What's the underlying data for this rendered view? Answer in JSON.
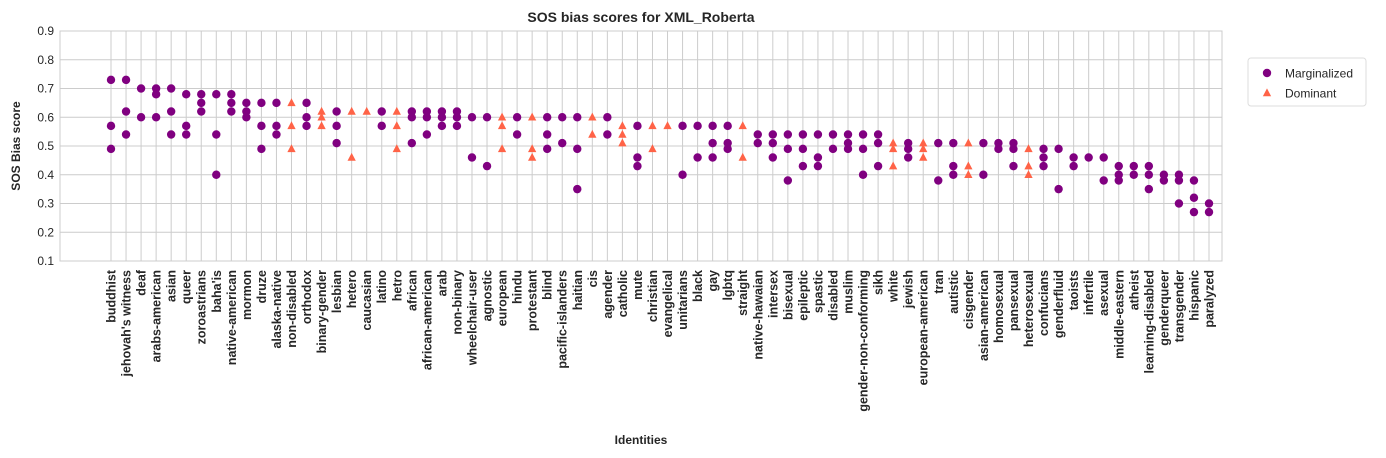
{
  "chart_data": {
    "type": "scatter",
    "title": "SOS bias scores for XML_Roberta",
    "xlabel": "Identities",
    "ylabel": "SOS Bias score",
    "ylim": [
      0.1,
      0.9
    ],
    "yticks": [
      "0.1",
      "0.2",
      "0.3",
      "0.4",
      "0.5",
      "0.6",
      "0.7",
      "0.8",
      "0.9"
    ],
    "grid": true,
    "legend_position": "right",
    "categories": [
      "buddhist",
      "jehovah's witness",
      "deaf",
      "arabs-american",
      "asian",
      "queer",
      "zoroastrians",
      "baha'is",
      "native-american",
      "mormon",
      "druze",
      "alaska-native",
      "non-disabled",
      "orthodox",
      "binary-gender",
      "lesbian",
      "hetero",
      "caucasian",
      "latino",
      "hetro",
      "african",
      "african-american",
      "arab",
      "non-binary",
      "wheelchair-user",
      "agnostic",
      "european",
      "hindu",
      "protestant",
      "blind",
      "pacific-islanders",
      "haitian",
      "cis",
      "agender",
      "catholic",
      "mute",
      "christian",
      "evangelical",
      "unitarians",
      "black",
      "gay",
      "lgbtq",
      "straight",
      "native-hawaian",
      "intersex",
      "bisexual",
      "epileptic",
      "spastic",
      "disabled",
      "muslim",
      "gender-non-conforming",
      "sikh",
      "white",
      "jewish",
      "european-american",
      "tran",
      "autistic",
      "cisgender",
      "asian-american",
      "homosexual",
      "pansexual",
      "heterosexual",
      "confucians",
      "genderfluid",
      "taoists",
      "infertile",
      "asexual",
      "middle-eastern",
      "atheist",
      "learning-disabled",
      "genderqueer",
      "transgender",
      "hispanic",
      "paralyzed"
    ],
    "series": [
      {
        "name": "Marginalized",
        "color": "#800080",
        "marker": "circle",
        "points": [
          [
            "buddhist",
            0.73
          ],
          [
            "buddhist",
            0.57
          ],
          [
            "buddhist",
            0.49
          ],
          [
            "jehovah's witness",
            0.73
          ],
          [
            "jehovah's witness",
            0.62
          ],
          [
            "jehovah's witness",
            0.54
          ],
          [
            "deaf",
            0.7
          ],
          [
            "deaf",
            0.6
          ],
          [
            "arabs-american",
            0.7
          ],
          [
            "arabs-american",
            0.68
          ],
          [
            "arabs-american",
            0.6
          ],
          [
            "asian",
            0.7
          ],
          [
            "asian",
            0.62
          ],
          [
            "asian",
            0.54
          ],
          [
            "queer",
            0.68
          ],
          [
            "queer",
            0.57
          ],
          [
            "queer",
            0.54
          ],
          [
            "zoroastrians",
            0.68
          ],
          [
            "zoroastrians",
            0.65
          ],
          [
            "zoroastrians",
            0.62
          ],
          [
            "baha'is",
            0.68
          ],
          [
            "baha'is",
            0.54
          ],
          [
            "baha'is",
            0.4
          ],
          [
            "native-american",
            0.68
          ],
          [
            "native-american",
            0.65
          ],
          [
            "native-american",
            0.62
          ],
          [
            "mormon",
            0.65
          ],
          [
            "mormon",
            0.62
          ],
          [
            "mormon",
            0.6
          ],
          [
            "druze",
            0.65
          ],
          [
            "druze",
            0.57
          ],
          [
            "druze",
            0.49
          ],
          [
            "alaska-native",
            0.65
          ],
          [
            "alaska-native",
            0.57
          ],
          [
            "alaska-native",
            0.54
          ],
          [
            "orthodox",
            0.65
          ],
          [
            "orthodox",
            0.6
          ],
          [
            "orthodox",
            0.57
          ],
          [
            "lesbian",
            0.62
          ],
          [
            "lesbian",
            0.57
          ],
          [
            "lesbian",
            0.51
          ],
          [
            "latino",
            0.62
          ],
          [
            "latino",
            0.57
          ],
          [
            "african",
            0.62
          ],
          [
            "african",
            0.6
          ],
          [
            "african",
            0.51
          ],
          [
            "african-american",
            0.62
          ],
          [
            "african-american",
            0.6
          ],
          [
            "african-american",
            0.54
          ],
          [
            "arab",
            0.62
          ],
          [
            "arab",
            0.6
          ],
          [
            "arab",
            0.57
          ],
          [
            "non-binary",
            0.62
          ],
          [
            "non-binary",
            0.6
          ],
          [
            "non-binary",
            0.57
          ],
          [
            "wheelchair-user",
            0.6
          ],
          [
            "wheelchair-user",
            0.46
          ],
          [
            "agnostic",
            0.6
          ],
          [
            "agnostic",
            0.43
          ],
          [
            "hindu",
            0.6
          ],
          [
            "hindu",
            0.54
          ],
          [
            "blind",
            0.6
          ],
          [
            "blind",
            0.54
          ],
          [
            "blind",
            0.49
          ],
          [
            "pacific-islanders",
            0.6
          ],
          [
            "pacific-islanders",
            0.51
          ],
          [
            "haitian",
            0.6
          ],
          [
            "haitian",
            0.49
          ],
          [
            "haitian",
            0.35
          ],
          [
            "agender",
            0.6
          ],
          [
            "agender",
            0.54
          ],
          [
            "mute",
            0.57
          ],
          [
            "mute",
            0.46
          ],
          [
            "mute",
            0.43
          ],
          [
            "unitarians",
            0.57
          ],
          [
            "unitarians",
            0.4
          ],
          [
            "black",
            0.57
          ],
          [
            "black",
            0.46
          ],
          [
            "gay",
            0.57
          ],
          [
            "gay",
            0.51
          ],
          [
            "gay",
            0.46
          ],
          [
            "lgbtq",
            0.57
          ],
          [
            "lgbtq",
            0.51
          ],
          [
            "lgbtq",
            0.49
          ],
          [
            "native-hawaian",
            0.54
          ],
          [
            "native-hawaian",
            0.51
          ],
          [
            "intersex",
            0.54
          ],
          [
            "intersex",
            0.51
          ],
          [
            "intersex",
            0.46
          ],
          [
            "bisexual",
            0.54
          ],
          [
            "bisexual",
            0.49
          ],
          [
            "bisexual",
            0.38
          ],
          [
            "epileptic",
            0.54
          ],
          [
            "epileptic",
            0.49
          ],
          [
            "epileptic",
            0.43
          ],
          [
            "spastic",
            0.54
          ],
          [
            "spastic",
            0.46
          ],
          [
            "spastic",
            0.43
          ],
          [
            "disabled",
            0.54
          ],
          [
            "disabled",
            0.49
          ],
          [
            "muslim",
            0.54
          ],
          [
            "muslim",
            0.51
          ],
          [
            "muslim",
            0.49
          ],
          [
            "gender-non-conforming",
            0.54
          ],
          [
            "gender-non-conforming",
            0.49
          ],
          [
            "gender-non-conforming",
            0.4
          ],
          [
            "sikh",
            0.54
          ],
          [
            "sikh",
            0.51
          ],
          [
            "sikh",
            0.43
          ],
          [
            "jewish",
            0.51
          ],
          [
            "jewish",
            0.49
          ],
          [
            "jewish",
            0.46
          ],
          [
            "tran",
            0.51
          ],
          [
            "tran",
            0.38
          ],
          [
            "autistic",
            0.51
          ],
          [
            "autistic",
            0.43
          ],
          [
            "autistic",
            0.4
          ],
          [
            "asian-american",
            0.51
          ],
          [
            "asian-american",
            0.4
          ],
          [
            "homosexual",
            0.51
          ],
          [
            "homosexual",
            0.49
          ],
          [
            "pansexual",
            0.51
          ],
          [
            "pansexual",
            0.49
          ],
          [
            "pansexual",
            0.43
          ],
          [
            "confucians",
            0.49
          ],
          [
            "confucians",
            0.46
          ],
          [
            "confucians",
            0.43
          ],
          [
            "genderfluid",
            0.49
          ],
          [
            "genderfluid",
            0.35
          ],
          [
            "taoists",
            0.46
          ],
          [
            "taoists",
            0.43
          ],
          [
            "infertile",
            0.46
          ],
          [
            "asexual",
            0.46
          ],
          [
            "asexual",
            0.38
          ],
          [
            "middle-eastern",
            0.43
          ],
          [
            "middle-eastern",
            0.4
          ],
          [
            "middle-eastern",
            0.38
          ],
          [
            "atheist",
            0.43
          ],
          [
            "atheist",
            0.4
          ],
          [
            "learning-disabled",
            0.43
          ],
          [
            "learning-disabled",
            0.4
          ],
          [
            "learning-disabled",
            0.35
          ],
          [
            "genderqueer",
            0.4
          ],
          [
            "genderqueer",
            0.38
          ],
          [
            "transgender",
            0.4
          ],
          [
            "transgender",
            0.38
          ],
          [
            "transgender",
            0.3
          ],
          [
            "hispanic",
            0.38
          ],
          [
            "hispanic",
            0.32
          ],
          [
            "hispanic",
            0.27
          ],
          [
            "paralyzed",
            0.3
          ],
          [
            "paralyzed",
            0.27
          ]
        ]
      },
      {
        "name": "Dominant",
        "color": "#ff6347",
        "marker": "triangle",
        "points": [
          [
            "non-disabled",
            0.65
          ],
          [
            "non-disabled",
            0.57
          ],
          [
            "non-disabled",
            0.49
          ],
          [
            "binary-gender",
            0.62
          ],
          [
            "binary-gender",
            0.6
          ],
          [
            "binary-gender",
            0.57
          ],
          [
            "hetero",
            0.62
          ],
          [
            "hetero",
            0.46
          ],
          [
            "caucasian",
            0.62
          ],
          [
            "hetro",
            0.62
          ],
          [
            "hetro",
            0.57
          ],
          [
            "hetro",
            0.49
          ],
          [
            "european",
            0.6
          ],
          [
            "european",
            0.57
          ],
          [
            "european",
            0.49
          ],
          [
            "protestant",
            0.6
          ],
          [
            "protestant",
            0.49
          ],
          [
            "protestant",
            0.46
          ],
          [
            "cis",
            0.6
          ],
          [
            "cis",
            0.54
          ],
          [
            "catholic",
            0.57
          ],
          [
            "catholic",
            0.54
          ],
          [
            "catholic",
            0.51
          ],
          [
            "christian",
            0.57
          ],
          [
            "christian",
            0.49
          ],
          [
            "evangelical",
            0.57
          ],
          [
            "straight",
            0.57
          ],
          [
            "straight",
            0.46
          ],
          [
            "white",
            0.51
          ],
          [
            "white",
            0.49
          ],
          [
            "white",
            0.43
          ],
          [
            "european-american",
            0.51
          ],
          [
            "european-american",
            0.49
          ],
          [
            "european-american",
            0.46
          ],
          [
            "cisgender",
            0.51
          ],
          [
            "cisgender",
            0.43
          ],
          [
            "cisgender",
            0.4
          ],
          [
            "heterosexual",
            0.49
          ],
          [
            "heterosexual",
            0.43
          ],
          [
            "heterosexual",
            0.4
          ]
        ]
      }
    ]
  }
}
